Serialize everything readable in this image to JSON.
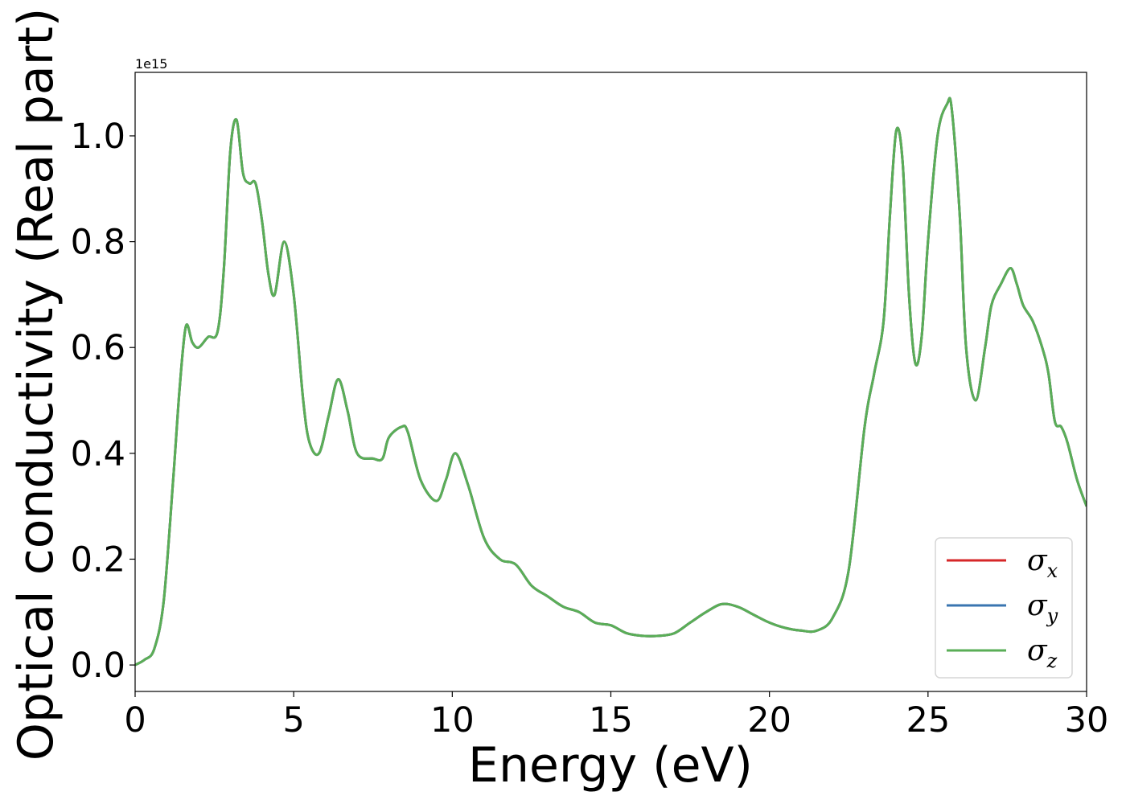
{
  "chart_data": {
    "type": "line",
    "title": "",
    "xlabel": "Energy (eV)",
    "ylabel": "Optical conductivity (Real part)",
    "y_offset_label": "1e15",
    "xlim": [
      0,
      30
    ],
    "ylim": [
      -0.05,
      1.12
    ],
    "xticks": [
      0,
      5,
      10,
      15,
      20,
      25,
      30
    ],
    "yticks": [
      0.0,
      0.2,
      0.4,
      0.6,
      0.8,
      1.0
    ],
    "xtick_labels": [
      "0",
      "5",
      "10",
      "15",
      "20",
      "25",
      "30"
    ],
    "ytick_labels": [
      "0.0",
      "0.2",
      "0.4",
      "0.6",
      "0.8",
      "1.0"
    ],
    "grid": false,
    "legend_position": "lower-right",
    "x": [
      0,
      0.3,
      0.6,
      0.9,
      1.2,
      1.4,
      1.6,
      1.8,
      2.0,
      2.3,
      2.6,
      2.8,
      3.0,
      3.2,
      3.4,
      3.6,
      3.8,
      4.0,
      4.2,
      4.4,
      4.7,
      5.0,
      5.3,
      5.5,
      5.8,
      6.1,
      6.4,
      6.7,
      7.0,
      7.5,
      7.8,
      8.0,
      8.4,
      8.6,
      9.0,
      9.5,
      9.8,
      10.1,
      10.5,
      11.0,
      11.5,
      12.0,
      12.5,
      13.0,
      13.5,
      14.0,
      14.5,
      15.0,
      15.5,
      16.0,
      16.5,
      17.0,
      17.5,
      18.0,
      18.5,
      19.0,
      19.5,
      20.0,
      20.5,
      21.0,
      21.5,
      22.0,
      22.5,
      23.0,
      23.3,
      23.6,
      23.8,
      24.0,
      24.2,
      24.4,
      24.6,
      24.8,
      25.0,
      25.3,
      25.6,
      25.75,
      26.0,
      26.2,
      26.5,
      26.8,
      27.0,
      27.3,
      27.6,
      27.8,
      28.0,
      28.3,
      28.6,
      28.8,
      29.0,
      29.2,
      29.4,
      29.7,
      30.0
    ],
    "series": [
      {
        "name": "σ",
        "subscript": "x",
        "color": "#d62728",
        "values": [
          0.0,
          0.01,
          0.03,
          0.12,
          0.35,
          0.52,
          0.64,
          0.61,
          0.6,
          0.62,
          0.63,
          0.75,
          0.97,
          1.03,
          0.93,
          0.91,
          0.91,
          0.84,
          0.74,
          0.7,
          0.8,
          0.7,
          0.5,
          0.42,
          0.4,
          0.47,
          0.54,
          0.48,
          0.4,
          0.39,
          0.39,
          0.43,
          0.45,
          0.44,
          0.35,
          0.31,
          0.35,
          0.4,
          0.34,
          0.24,
          0.2,
          0.19,
          0.15,
          0.13,
          0.11,
          0.1,
          0.08,
          0.075,
          0.06,
          0.055,
          0.055,
          0.06,
          0.08,
          0.1,
          0.115,
          0.11,
          0.095,
          0.08,
          0.07,
          0.065,
          0.065,
          0.09,
          0.18,
          0.45,
          0.55,
          0.65,
          0.85,
          1.01,
          0.95,
          0.7,
          0.57,
          0.62,
          0.8,
          1.0,
          1.06,
          1.05,
          0.85,
          0.6,
          0.5,
          0.6,
          0.68,
          0.72,
          0.75,
          0.72,
          0.68,
          0.65,
          0.6,
          0.55,
          0.46,
          0.45,
          0.42,
          0.35,
          0.3
        ]
      },
      {
        "name": "σ",
        "subscript": "y",
        "color": "#3a75b0",
        "values": [
          0.0,
          0.01,
          0.03,
          0.12,
          0.35,
          0.52,
          0.64,
          0.61,
          0.6,
          0.62,
          0.63,
          0.75,
          0.97,
          1.03,
          0.93,
          0.91,
          0.91,
          0.84,
          0.74,
          0.7,
          0.8,
          0.7,
          0.5,
          0.42,
          0.4,
          0.47,
          0.54,
          0.48,
          0.4,
          0.39,
          0.39,
          0.43,
          0.45,
          0.44,
          0.35,
          0.31,
          0.35,
          0.4,
          0.34,
          0.24,
          0.2,
          0.19,
          0.15,
          0.13,
          0.11,
          0.1,
          0.08,
          0.075,
          0.06,
          0.055,
          0.055,
          0.06,
          0.08,
          0.1,
          0.115,
          0.11,
          0.095,
          0.08,
          0.07,
          0.065,
          0.065,
          0.09,
          0.18,
          0.45,
          0.55,
          0.65,
          0.85,
          1.01,
          0.95,
          0.7,
          0.57,
          0.62,
          0.8,
          1.0,
          1.06,
          1.05,
          0.85,
          0.6,
          0.5,
          0.6,
          0.68,
          0.72,
          0.75,
          0.72,
          0.68,
          0.65,
          0.6,
          0.55,
          0.46,
          0.45,
          0.42,
          0.35,
          0.3
        ]
      },
      {
        "name": "σ",
        "subscript": "z",
        "color": "#5aae57",
        "values": [
          0.0,
          0.01,
          0.03,
          0.12,
          0.35,
          0.52,
          0.64,
          0.61,
          0.6,
          0.62,
          0.63,
          0.75,
          0.97,
          1.03,
          0.93,
          0.91,
          0.91,
          0.84,
          0.74,
          0.7,
          0.8,
          0.7,
          0.5,
          0.42,
          0.4,
          0.47,
          0.54,
          0.48,
          0.4,
          0.39,
          0.39,
          0.43,
          0.45,
          0.44,
          0.35,
          0.31,
          0.35,
          0.4,
          0.34,
          0.24,
          0.2,
          0.19,
          0.15,
          0.13,
          0.11,
          0.1,
          0.08,
          0.075,
          0.06,
          0.055,
          0.055,
          0.06,
          0.08,
          0.1,
          0.115,
          0.11,
          0.095,
          0.08,
          0.07,
          0.065,
          0.065,
          0.09,
          0.18,
          0.45,
          0.55,
          0.65,
          0.85,
          1.01,
          0.95,
          0.7,
          0.57,
          0.62,
          0.8,
          1.0,
          1.06,
          1.05,
          0.85,
          0.6,
          0.5,
          0.6,
          0.68,
          0.72,
          0.75,
          0.72,
          0.68,
          0.65,
          0.6,
          0.55,
          0.46,
          0.45,
          0.42,
          0.35,
          0.3
        ]
      }
    ]
  }
}
